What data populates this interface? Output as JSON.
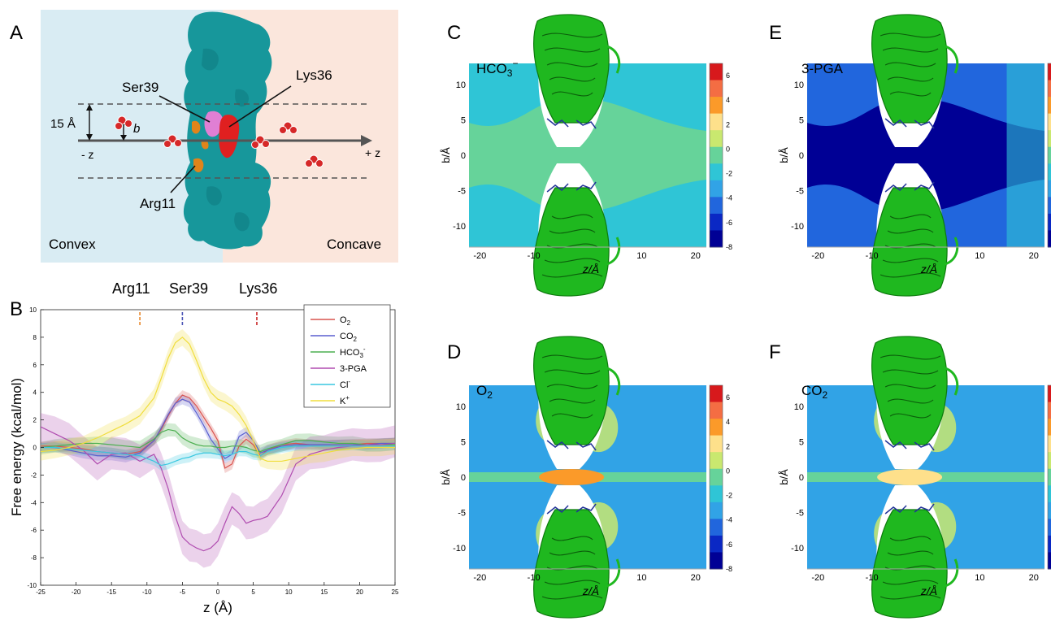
{
  "panel_letters": {
    "A": "A",
    "B": "B",
    "C": "C",
    "D": "D",
    "E": "E",
    "F": "F"
  },
  "panelA": {
    "left_region": "Convex",
    "right_region": "Concave",
    "residues": [
      "Ser39",
      "Lys36",
      "Arg11"
    ],
    "distance_label": "15 Å",
    "b_label": "b",
    "minus_z": "- z",
    "plus_z": "+ z",
    "colors": {
      "convex_bg": "#d9ecf3",
      "concave_bg": "#fbe6dc",
      "protein": "#17979b",
      "ser39": "#e07fd4",
      "lys36": "#e02020",
      "arg11": "#e0841a"
    }
  },
  "chart_data": [
    {
      "type": "line",
      "panel": "B",
      "xlabel": "z (Å)",
      "ylabel": "Free energy (kcal/mol)",
      "xlim": [
        -25,
        25
      ],
      "ylim": [
        -10,
        10
      ],
      "xticks": [
        -25,
        -20,
        -15,
        -10,
        -5,
        0,
        5,
        10,
        15,
        20,
        25
      ],
      "yticks": [
        -10,
        -8,
        -6,
        -4,
        -2,
        0,
        2,
        4,
        6,
        8,
        10
      ],
      "legend_position": "top-right",
      "markers": [
        {
          "label": "Arg11",
          "x": -11,
          "color": "#e8862a"
        },
        {
          "label": "Ser39",
          "x": -5,
          "color": "#4a54b5"
        },
        {
          "label": "Lys36",
          "x": 5.5,
          "color": "#c92a2a"
        }
      ],
      "x": [
        -25,
        -23,
        -21,
        -19,
        -17,
        -15,
        -13,
        -11,
        -9,
        -8,
        -7,
        -6,
        -5,
        -4,
        -3,
        -2,
        -1,
        0,
        1,
        2,
        3,
        4,
        5,
        6,
        7,
        9,
        11,
        13,
        15,
        17,
        19,
        21,
        23,
        25
      ],
      "series": [
        {
          "name": "O2",
          "color": "#d9534f",
          "band": 0.3,
          "y": [
            0.1,
            0.1,
            0.0,
            -0.1,
            -0.3,
            -0.4,
            -0.5,
            -0.3,
            0.5,
            1.3,
            2.3,
            3.2,
            3.8,
            3.6,
            3.0,
            2.2,
            1.4,
            0.5,
            -1.5,
            -1.2,
            0.1,
            0.6,
            0.2,
            -0.6,
            -0.2,
            0.2,
            0.3,
            0.2,
            0.2,
            0.2,
            0.2,
            0.3,
            0.3,
            0.3
          ]
        },
        {
          "name": "CO2",
          "color": "#5a5fcf",
          "band": 0.3,
          "y": [
            0.0,
            0.0,
            -0.2,
            -0.4,
            -0.6,
            -0.6,
            -0.7,
            -0.4,
            0.5,
            1.4,
            2.4,
            3.2,
            3.5,
            3.3,
            2.5,
            1.6,
            0.6,
            -0.1,
            -0.8,
            -0.5,
            0.8,
            1.1,
            0.5,
            -0.4,
            -0.2,
            0.1,
            0.2,
            0.2,
            0.2,
            0.2,
            0.2,
            0.2,
            0.3,
            0.3
          ]
        },
        {
          "name": "HCO3-",
          "color": "#4caf50",
          "band": 0.4,
          "y": [
            0.0,
            0.1,
            0.2,
            0.3,
            0.3,
            0.2,
            0.1,
            0.0,
            0.6,
            1.1,
            1.3,
            1.2,
            0.7,
            0.4,
            0.2,
            0.1,
            0.1,
            0.0,
            0.0,
            0.1,
            0.1,
            0.0,
            -0.2,
            -0.3,
            -0.1,
            0.2,
            0.5,
            0.5,
            0.4,
            0.3,
            0.3,
            0.2,
            0.2,
            0.2
          ]
        },
        {
          "name": "3-PGA",
          "color": "#b04cb0",
          "band": 1.0,
          "y": [
            1.5,
            1.0,
            0.5,
            -0.2,
            -1.2,
            -0.5,
            -0.4,
            -1.0,
            -0.5,
            -1.5,
            -3.0,
            -5.0,
            -6.5,
            -7.0,
            -7.3,
            -7.5,
            -7.3,
            -6.8,
            -5.5,
            -4.3,
            -4.8,
            -5.5,
            -5.3,
            -5.2,
            -5.0,
            -3.5,
            -1.2,
            -0.5,
            -0.2,
            0.0,
            0.1,
            0.2,
            0.2,
            0.3
          ]
        },
        {
          "name": "Cl-",
          "color": "#38c7e0",
          "band": 0.3,
          "y": [
            0.0,
            0.0,
            -0.1,
            -0.2,
            -0.3,
            -0.4,
            -0.5,
            -0.6,
            -1.0,
            -1.3,
            -1.2,
            -1.0,
            -0.8,
            -0.7,
            -0.5,
            -0.4,
            -0.4,
            -0.5,
            -0.6,
            -0.5,
            -0.3,
            -0.3,
            -0.5,
            -0.6,
            -0.3,
            0.0,
            0.1,
            0.1,
            0.1,
            0.1,
            0.1,
            0.1,
            0.1,
            0.1
          ]
        },
        {
          "name": "K+",
          "color": "#f0dd3c",
          "band": 0.5,
          "y": [
            -0.3,
            -0.2,
            0.0,
            0.3,
            0.7,
            1.2,
            1.7,
            2.3,
            3.6,
            5.0,
            6.5,
            7.6,
            8.0,
            7.5,
            6.3,
            5.0,
            4.0,
            3.5,
            3.3,
            3.0,
            2.4,
            1.6,
            0.5,
            -0.8,
            -1.0,
            -1.0,
            -0.8,
            -0.6,
            -0.4,
            -0.2,
            -0.1,
            0.0,
            0.0,
            0.0
          ]
        }
      ],
      "legend_entries": [
        "O",
        "CO",
        "HCO",
        "3-PGA",
        "Cl",
        "K"
      ]
    },
    {
      "type": "heatmap",
      "panel": "C",
      "title_base": "HCO",
      "title_sub": "3",
      "title_sup": "−",
      "xlabel": "z/Å",
      "ylabel": "b/Å",
      "xlim": [
        -22,
        22
      ],
      "ylim": [
        -13,
        13
      ],
      "xticks": [
        -20,
        -10,
        10,
        20
      ],
      "yticks": [
        10,
        5,
        0,
        -5,
        -10
      ],
      "regions": {
        "far_field": 0.2,
        "center_band": 2.5,
        "inner_lobes": 2.0,
        "hot_spots": 4.0
      }
    },
    {
      "type": "heatmap",
      "panel": "E",
      "title_base": "3-PGA",
      "title_sub": "",
      "title_sup": "",
      "xlabel": "z/Å",
      "ylabel": "b/Å",
      "xlim": [
        -22,
        22
      ],
      "ylim": [
        -13,
        13
      ],
      "xticks": [
        -20,
        -10,
        10,
        20
      ],
      "yticks": [
        10,
        5,
        0,
        -5,
        -10
      ],
      "regions": {
        "far_field": -2.0,
        "center_band": -6.5,
        "inner_lobes": -4.5,
        "right_edge": 0.5
      }
    },
    {
      "type": "heatmap",
      "panel": "D",
      "title_base": "O",
      "title_sub": "2",
      "title_sup": "",
      "xlabel": "z/Å",
      "ylabel": "b/Å",
      "xlim": [
        -22,
        22
      ],
      "ylim": [
        -13,
        13
      ],
      "xticks": [
        -20,
        -10,
        10,
        20
      ],
      "yticks": [
        10,
        5,
        0,
        -5,
        -10
      ],
      "regions": {
        "far_field": -0.3,
        "center_band": 3.0,
        "side_blobs": 4.5,
        "center_core": 6.5
      }
    },
    {
      "type": "heatmap",
      "panel": "F",
      "title_base": "CO",
      "title_sub": "2",
      "title_sup": "",
      "xlabel": "z/Å",
      "ylabel": "b/Å",
      "xlim": [
        -22,
        22
      ],
      "ylim": [
        -13,
        13
      ],
      "xticks": [
        -20,
        -10,
        10,
        20
      ],
      "yticks": [
        10,
        5,
        0,
        -5,
        -10
      ],
      "regions": {
        "far_field": -0.3,
        "center_band": 2.5,
        "side_blobs": 4.0,
        "center_core": 6.0
      }
    }
  ],
  "colorbar": {
    "ticks": [
      6,
      4,
      2,
      0,
      -2,
      -4,
      -6,
      -8
    ],
    "colors": [
      "#d7191c",
      "#f46d43",
      "#fb9a29",
      "#fee08b",
      "#c9e86f",
      "#66d39a",
      "#2fc5d6",
      "#31a3e6",
      "#2166dd",
      "#0a28c4",
      "#000095"
    ]
  },
  "protein_color": "#1fb81f"
}
